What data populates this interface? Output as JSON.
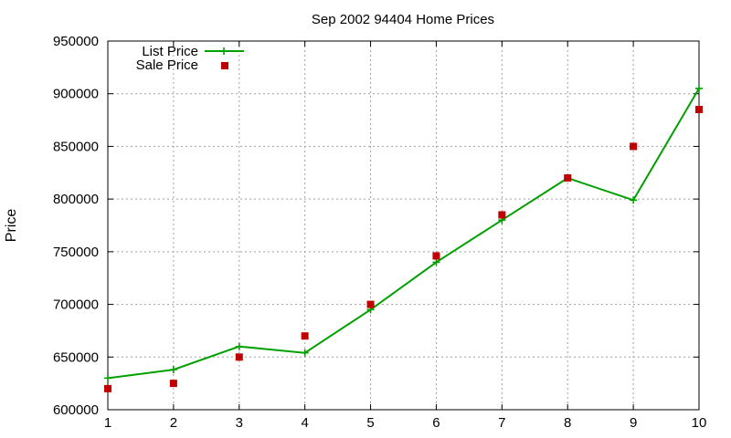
{
  "chart_data": {
    "type": "line",
    "title": "Sep 2002 94404 Home Prices",
    "xlabel": "",
    "ylabel": "Price",
    "xlim": [
      1,
      10
    ],
    "ylim": [
      600000,
      950000
    ],
    "x": [
      1,
      2,
      3,
      4,
      5,
      6,
      7,
      8,
      9,
      10
    ],
    "xticks": [
      1,
      2,
      3,
      4,
      5,
      6,
      7,
      8,
      9,
      10
    ],
    "yticks": [
      600000,
      650000,
      700000,
      750000,
      800000,
      850000,
      900000,
      950000
    ],
    "grid": true,
    "legend_position": "top-left",
    "series": [
      {
        "name": "List Price",
        "style": "line-with-plus-markers",
        "color": "#00a000",
        "values": [
          630000,
          638000,
          660000,
          654000,
          695000,
          740000,
          780000,
          820000,
          799000,
          905000
        ]
      },
      {
        "name": "Sale Price",
        "style": "square-markers",
        "color": "#c00000",
        "values": [
          620000,
          625000,
          650000,
          670000,
          700000,
          746000,
          785000,
          820000,
          850000,
          885000
        ]
      }
    ]
  }
}
